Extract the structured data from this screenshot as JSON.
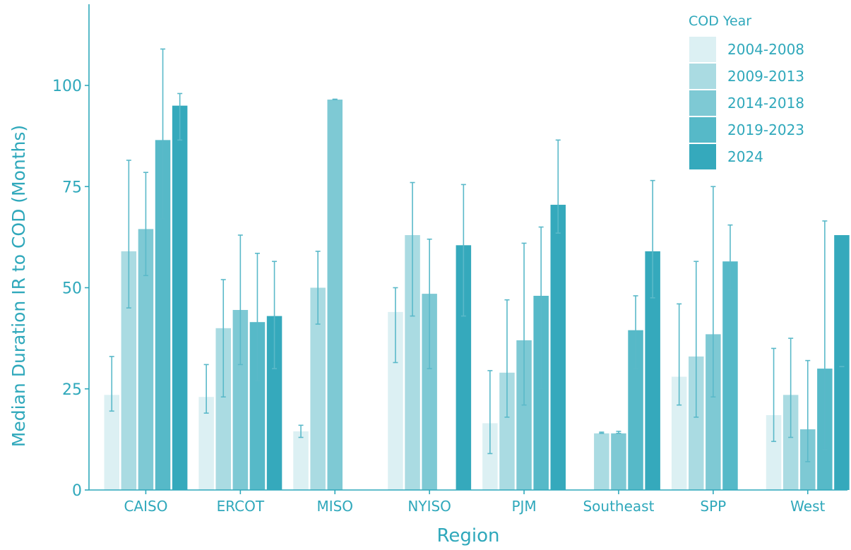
{
  "chart_data": {
    "type": "bar",
    "xlabel": "Region",
    "ylabel": "Median Duration IR to COD (Months)",
    "ylim": [
      0,
      115
    ],
    "yticks": [
      0,
      25,
      50,
      75,
      100
    ],
    "grid": false,
    "legend": {
      "title": "COD Year",
      "placement": "top-right"
    },
    "categories": [
      "CAISO",
      "ERCOT",
      "MISO",
      "NYISO",
      "PJM",
      "Southeast",
      "SPP",
      "West"
    ],
    "series": [
      {
        "name": "2004-2008",
        "color": "#dcf0f3",
        "values": [
          23.5,
          23.0,
          14.5,
          44.0,
          16.5,
          null,
          28.0,
          18.5
        ],
        "error_low": [
          19.5,
          19.0,
          13.0,
          31.5,
          9.0,
          null,
          21.0,
          12.0
        ],
        "error_high": [
          33.0,
          31.0,
          16.0,
          50.0,
          29.5,
          null,
          46.0,
          35.0
        ]
      },
      {
        "name": "2009-2013",
        "color": "#aadbe2",
        "values": [
          59.0,
          40.0,
          50.0,
          63.0,
          29.0,
          14.0,
          33.0,
          23.5
        ],
        "error_low": [
          45.0,
          23.0,
          41.0,
          43.0,
          18.0,
          14.0,
          18.0,
          13.0
        ],
        "error_high": [
          81.5,
          52.0,
          59.0,
          76.0,
          47.0,
          14.3,
          56.5,
          37.5
        ]
      },
      {
        "name": "2014-2018",
        "color": "#7ec9d4",
        "values": [
          64.5,
          44.5,
          96.5,
          48.5,
          37.0,
          14.0,
          38.5,
          15.0
        ],
        "error_low": [
          53.0,
          31.0,
          96.5,
          30.0,
          21.0,
          14.0,
          23.0,
          7.0
        ],
        "error_high": [
          78.5,
          63.0,
          96.6,
          62.0,
          61.0,
          14.5,
          75.0,
          32.0
        ]
      },
      {
        "name": "2019-2023",
        "color": "#56b9c8",
        "values": [
          86.5,
          41.5,
          null,
          null,
          48.0,
          39.5,
          56.5,
          30.0
        ],
        "error_low": [
          67.0,
          27.0,
          null,
          null,
          25.0,
          30.0,
          49.5,
          10.0
        ],
        "error_high": [
          109.0,
          58.5,
          null,
          null,
          65.0,
          48.0,
          65.5,
          66.5
        ]
      },
      {
        "name": "2024",
        "color": "#35a9bc",
        "values": [
          95.0,
          43.0,
          null,
          60.5,
          70.5,
          59.0,
          null,
          63.0
        ],
        "error_low": [
          86.5,
          30.0,
          null,
          43.0,
          63.5,
          47.5,
          null,
          30.5
        ],
        "error_high": [
          98.0,
          56.5,
          null,
          75.5,
          86.5,
          76.5,
          null,
          30.5
        ]
      }
    ]
  },
  "style": {
    "axis_color": "#2fa8bb",
    "text_color": "#2fa8bb",
    "error_color": "#5ab9c9"
  }
}
